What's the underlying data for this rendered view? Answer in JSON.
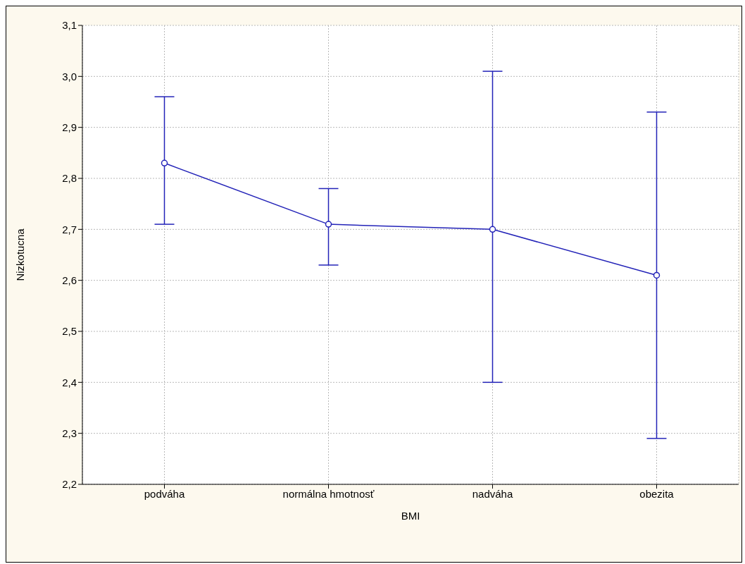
{
  "chart_data": {
    "type": "line",
    "xlabel": "BMI",
    "ylabel": "Nizkotucna",
    "categories": [
      "podváha",
      "normálna hmotnosť",
      "nadváha",
      "obezita"
    ],
    "series": [
      {
        "color": "#2323b8",
        "values": [
          2.83,
          2.71,
          2.7,
          2.61
        ],
        "errors": [
          [
            2.71,
            2.96
          ],
          [
            2.63,
            2.78
          ],
          [
            2.4,
            3.01
          ],
          [
            2.29,
            2.93
          ]
        ]
      }
    ],
    "ylim": [
      2.2,
      3.1
    ],
    "yticks": [
      {
        "value": 2.2,
        "label": "2,2"
      },
      {
        "value": 2.3,
        "label": "2,3"
      },
      {
        "value": 2.4,
        "label": "2,4"
      },
      {
        "value": 2.5,
        "label": "2,5"
      },
      {
        "value": 2.6,
        "label": "2,6"
      },
      {
        "value": 2.7,
        "label": "2,7"
      },
      {
        "value": 2.8,
        "label": "2,8"
      },
      {
        "value": 2.9,
        "label": "2,9"
      },
      {
        "value": 3.0,
        "label": "3,0"
      },
      {
        "value": 3.1,
        "label": "3,1"
      }
    ],
    "grid": true,
    "marker": "circle",
    "line_style": "solid"
  }
}
